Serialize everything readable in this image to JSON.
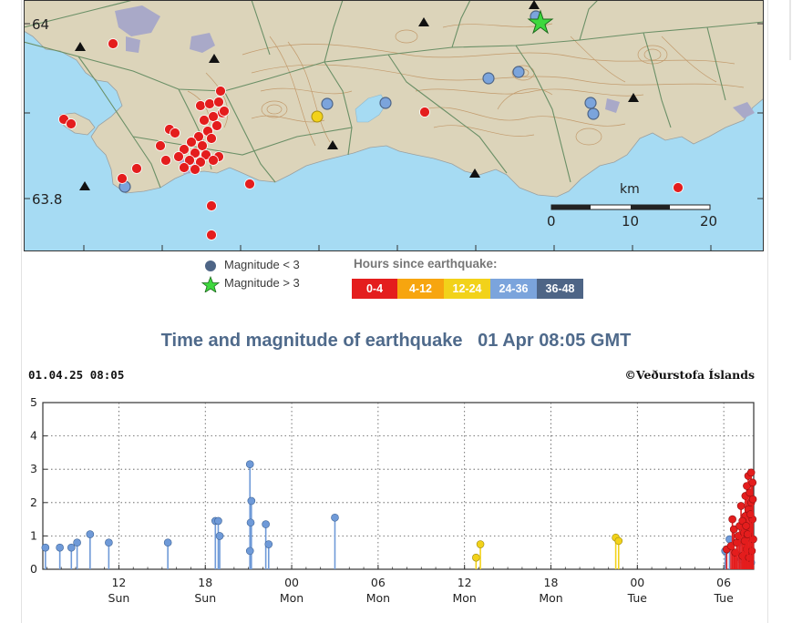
{
  "map": {
    "lat_labels": [
      "64",
      "63.8"
    ],
    "scale": {
      "unit": "km",
      "ticks": [
        "0",
        "10",
        "20"
      ]
    },
    "colors": {
      "sea": "#a6dbf3",
      "land": "#dcd4ba",
      "contour": "#c29a6c",
      "road": "#6a8f66",
      "urban": "#a9a9c8"
    },
    "station_symbol": "black-triangle",
    "large_quake_symbol": "green-star"
  },
  "legend": {
    "small_label": "Magnitude < 3",
    "large_label": "Magnitude > 3",
    "hours_title": "Hours since earthquake:",
    "bins": [
      {
        "label": "0-4",
        "color": "#e41d1d"
      },
      {
        "label": "4-12",
        "color": "#f7a50f"
      },
      {
        "label": "12-24",
        "color": "#f2d21a"
      },
      {
        "label": "24-36",
        "color": "#7ba4dc"
      },
      {
        "label": "36-48",
        "color": "#4e6586"
      }
    ]
  },
  "section_title": "Time and magnitude of earthquake   01 Apr 08:05 GMT",
  "chart_data": {
    "type": "scatter",
    "header_left": "01.04.25 08:05",
    "header_right": "©Veðurstofa Íslands",
    "ylim": [
      0,
      5
    ],
    "yticks": [
      "0",
      "1",
      "2",
      "3",
      "4",
      "5"
    ],
    "x_unit": "hours since Sat 30 Mar 00:00 GMT",
    "xlim": [
      6.72,
      56.08
    ],
    "xticks": [
      {
        "x": 12,
        "hour": "12",
        "day": "Sun"
      },
      {
        "x": 18,
        "hour": "18",
        "day": "Sun"
      },
      {
        "x": 24,
        "hour": "00",
        "day": "Mon"
      },
      {
        "x": 30,
        "hour": "06",
        "day": "Mon"
      },
      {
        "x": 36,
        "hour": "12",
        "day": "Mon"
      },
      {
        "x": 42,
        "hour": "18",
        "day": "Mon"
      },
      {
        "x": 48,
        "hour": "00",
        "day": "Tue"
      },
      {
        "x": 54,
        "hour": "06",
        "day": "Tue"
      }
    ],
    "series": [
      {
        "color": "#6f9ad8",
        "points": [
          [
            6.9,
            0.65
          ],
          [
            7.9,
            0.65
          ],
          [
            8.7,
            0.65
          ],
          [
            9.1,
            0.8
          ],
          [
            10.0,
            1.05
          ],
          [
            11.3,
            0.8
          ],
          [
            15.4,
            0.8
          ],
          [
            18.7,
            1.45
          ],
          [
            18.9,
            1.45
          ],
          [
            19.0,
            1.0
          ],
          [
            21.1,
            3.15
          ],
          [
            21.2,
            2.05
          ],
          [
            21.15,
            1.4
          ],
          [
            21.1,
            0.55
          ],
          [
            22.2,
            1.35
          ],
          [
            22.4,
            0.75
          ],
          [
            27.0,
            1.55
          ],
          [
            54.1,
            0.55
          ],
          [
            54.4,
            0.9
          ],
          [
            55.1,
            0.8
          ],
          [
            55.9,
            0.2
          ],
          [
            55.6,
            0.2
          ],
          [
            55.2,
            0.3
          ]
        ]
      },
      {
        "color": "#f2d21a",
        "points": [
          [
            36.8,
            0.35
          ],
          [
            37.1,
            0.75
          ],
          [
            46.5,
            0.95
          ],
          [
            46.7,
            0.85
          ]
        ]
      },
      {
        "color": "#e41d1d",
        "points": [
          [
            54.2,
            0.6
          ],
          [
            54.5,
            0.7
          ],
          [
            54.6,
            1.5
          ],
          [
            54.7,
            1.2
          ],
          [
            54.8,
            0.5
          ],
          [
            54.9,
            0.8
          ],
          [
            55.0,
            1.0
          ],
          [
            55.1,
            1.3
          ],
          [
            55.2,
            1.9
          ],
          [
            55.3,
            0.4
          ],
          [
            55.4,
            1.1
          ],
          [
            55.5,
            2.2
          ],
          [
            55.5,
            1.6
          ],
          [
            55.6,
            2.5
          ],
          [
            55.6,
            0.6
          ],
          [
            55.7,
            2.8
          ],
          [
            55.7,
            1.8
          ],
          [
            55.8,
            2.3
          ],
          [
            55.8,
            1.2
          ],
          [
            55.9,
            2.9
          ],
          [
            55.9,
            2.0
          ],
          [
            56.0,
            1.5
          ],
          [
            56.0,
            2.6
          ],
          [
            56.05,
            0.9
          ],
          [
            55.3,
            1.45
          ],
          [
            55.45,
            0.85
          ],
          [
            55.55,
            1.3
          ],
          [
            55.75,
            0.35
          ],
          [
            55.95,
            0.55
          ],
          [
            55.65,
            1.05
          ],
          [
            55.85,
            1.65
          ],
          [
            56.02,
            2.1
          ]
        ]
      }
    ]
  }
}
